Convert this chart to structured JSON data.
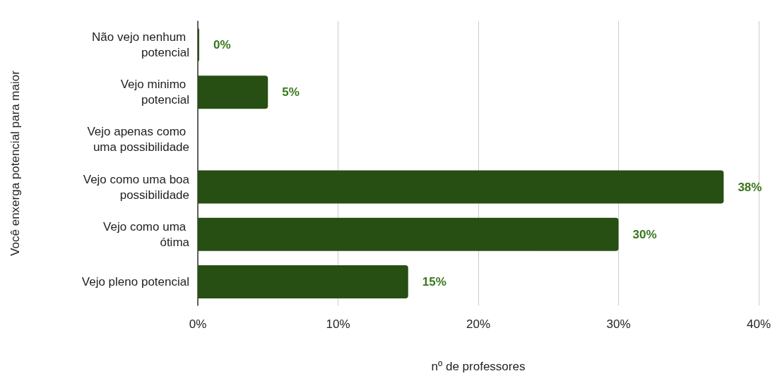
{
  "chart_data": {
    "type": "bar",
    "orientation": "horizontal",
    "ylabel": "Você enxerga potencial para maior",
    "xlabel": "nº de professores",
    "categories": [
      "Não vejo nenhum potencial",
      "Vejo minimo potencial",
      "Vejo apenas como uma possibilidade",
      "Vejo como uma boa possibilidade",
      "Vejo como uma ótima",
      "Vejo pleno potencial"
    ],
    "values": [
      0.1,
      5,
      null,
      37.5,
      30,
      15
    ],
    "value_labels": [
      "0%",
      "5%",
      null,
      "38%",
      "30%",
      "15%"
    ],
    "color": "#274e13",
    "xlim": [
      0,
      40
    ],
    "xticks": [
      {
        "value": 0,
        "label": "0%"
      },
      {
        "value": 10,
        "label": "10%"
      },
      {
        "value": 20,
        "label": "20%"
      },
      {
        "value": 30,
        "label": "30%"
      },
      {
        "value": 40,
        "label": "40%"
      }
    ],
    "grid": "x"
  }
}
